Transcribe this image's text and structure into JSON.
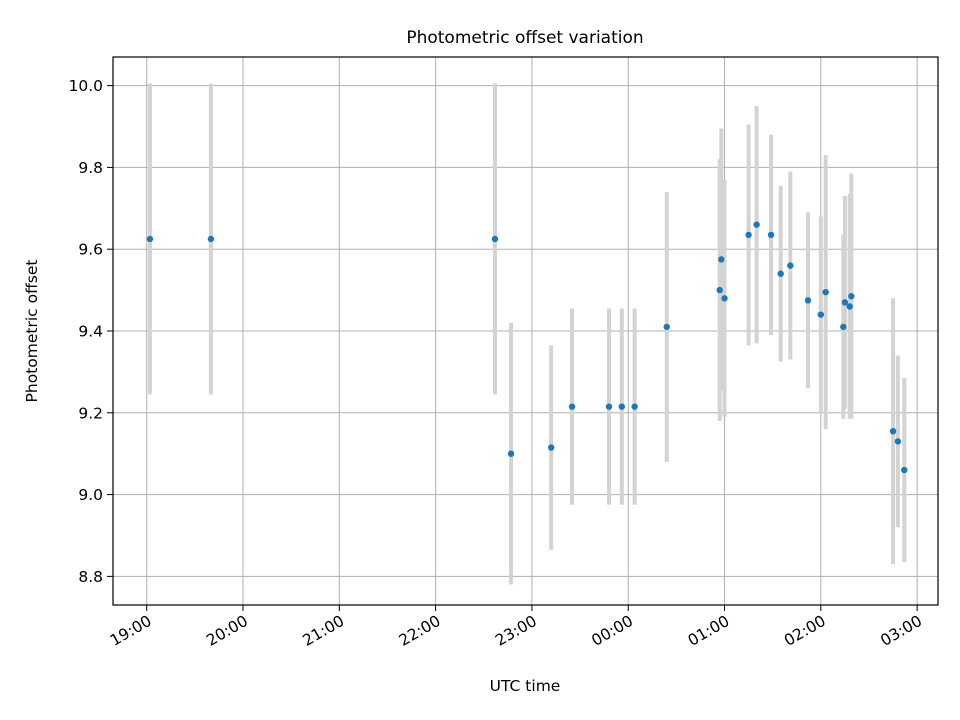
{
  "chart_data": {
    "type": "scatter",
    "title": "Photometric offset variation",
    "xlabel": "UTC time",
    "ylabel": "Photometric offset",
    "x_ticks": [
      "19:00",
      "20:00",
      "21:00",
      "22:00",
      "23:00",
      "00:00",
      "01:00",
      "02:00",
      "03:00"
    ],
    "y_ticks": [
      "8.8",
      "9.0",
      "9.2",
      "9.4",
      "9.6",
      "9.8",
      "10.0"
    ],
    "xlim": [
      "18:39",
      "03:13"
    ],
    "ylim": [
      8.73,
      10.07
    ],
    "grid": true,
    "point_color": "#1f77b4",
    "errorbar_color": "#d3d3d3",
    "points": [
      {
        "x": "19:02",
        "y": 9.625,
        "err": 0.38
      },
      {
        "x": "19:40",
        "y": 9.625,
        "err": 0.38
      },
      {
        "x": "22:37",
        "y": 9.625,
        "err": 0.38
      },
      {
        "x": "22:47",
        "y": 9.1,
        "err": 0.32
      },
      {
        "x": "23:12",
        "y": 9.115,
        "err": 0.25
      },
      {
        "x": "23:25",
        "y": 9.215,
        "err": 0.24
      },
      {
        "x": "23:48",
        "y": 9.215,
        "err": 0.24
      },
      {
        "x": "23:56",
        "y": 9.215,
        "err": 0.24
      },
      {
        "x": "00:04",
        "y": 9.215,
        "err": 0.24
      },
      {
        "x": "00:24",
        "y": 9.41,
        "err": 0.33
      },
      {
        "x": "00:57",
        "y": 9.5,
        "err": 0.32
      },
      {
        "x": "00:58",
        "y": 9.575,
        "err": 0.32
      },
      {
        "x": "01:00",
        "y": 9.48,
        "err": 0.29
      },
      {
        "x": "01:15",
        "y": 9.635,
        "err": 0.27
      },
      {
        "x": "01:20",
        "y": 9.66,
        "err": 0.29
      },
      {
        "x": "01:29",
        "y": 9.635,
        "err": 0.245
      },
      {
        "x": "01:35",
        "y": 9.54,
        "err": 0.215
      },
      {
        "x": "01:41",
        "y": 9.56,
        "err": 0.23
      },
      {
        "x": "01:52",
        "y": 9.475,
        "err": 0.215
      },
      {
        "x": "02:00",
        "y": 9.44,
        "err": 0.24
      },
      {
        "x": "02:03",
        "y": 9.495,
        "err": 0.335
      },
      {
        "x": "02:14",
        "y": 9.41,
        "err": 0.225
      },
      {
        "x": "02:15",
        "y": 9.47,
        "err": 0.26
      },
      {
        "x": "02:18",
        "y": 9.46,
        "err": 0.275
      },
      {
        "x": "02:19",
        "y": 9.485,
        "err": 0.3
      },
      {
        "x": "02:45",
        "y": 9.155,
        "err": 0.325
      },
      {
        "x": "02:48",
        "y": 9.13,
        "err": 0.21
      },
      {
        "x": "02:52",
        "y": 9.06,
        "err": 0.225
      }
    ]
  }
}
